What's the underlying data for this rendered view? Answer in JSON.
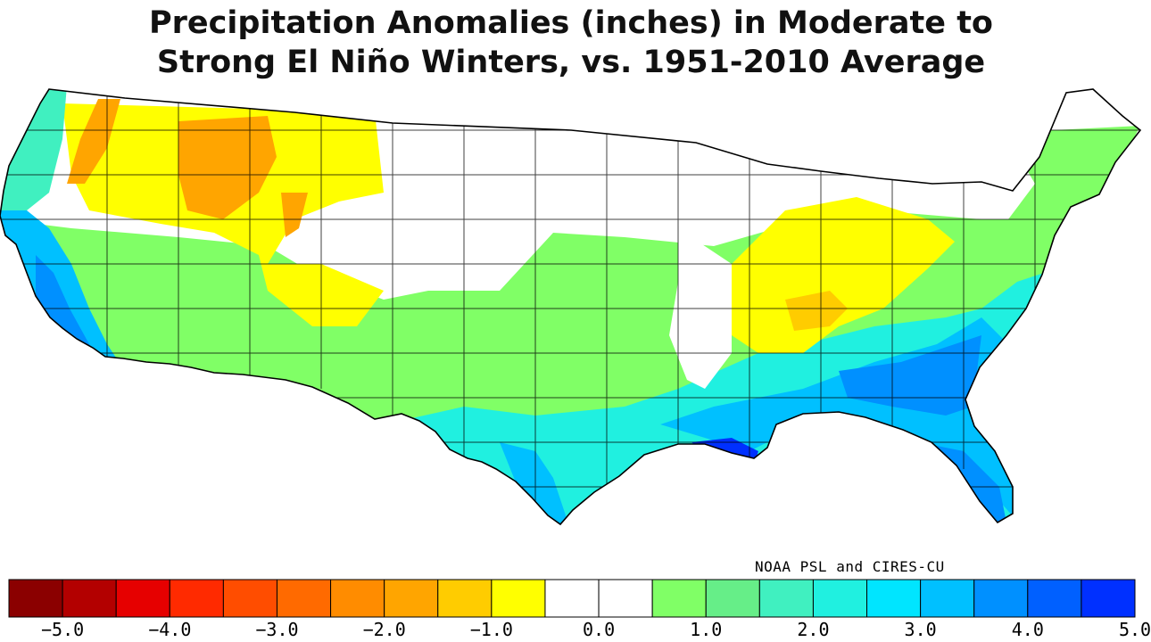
{
  "title": {
    "line1": "Precipitation Anomalies (inches) in Moderate to",
    "line2": "Strong El Niño Winters, vs. 1951-2010 Average"
  },
  "credit": "NOAA PSL and CIRES-CU",
  "legend": {
    "colors": [
      "#8b0000",
      "#b30000",
      "#e60000",
      "#ff2a00",
      "#ff4d00",
      "#ff6a00",
      "#ff8c00",
      "#ffa500",
      "#ffcc00",
      "#ffff00",
      "#ffffff",
      "#ffffff",
      "#80ff66",
      "#66ee88",
      "#40f0c0",
      "#20f0e0",
      "#00e5ff",
      "#00c0ff",
      "#0090ff",
      "#0060ff",
      "#0030ff"
    ],
    "ticks": [
      "-5.0",
      "-4.0",
      "-3.0",
      "-2.0",
      "-1.0",
      "0.0",
      "1.0",
      "2.0",
      "3.0",
      "4.0",
      "5.0"
    ]
  },
  "regions": [
    {
      "name": "Pacific Northwest coast",
      "anomaly_class": "wet",
      "color": "#40f0c0"
    },
    {
      "name": "Interior Northwest / Northern Rockies",
      "anomaly_class": "dry",
      "color": "#ffa500"
    },
    {
      "name": "Northern Plains & Upper Midwest",
      "anomaly_class": "near normal",
      "color": "#ffffff"
    },
    {
      "name": "California",
      "anomaly_class": "wet",
      "color": "#00c0ff"
    },
    {
      "name": "Southwest & Southern Plains",
      "anomaly_class": "wet",
      "color": "#80ff66"
    },
    {
      "name": "Ohio Valley",
      "anomaly_class": "dry",
      "color": "#ffff00"
    },
    {
      "name": "Gulf Coast & Southeast",
      "anomaly_class": "very wet",
      "color": "#0060ff"
    },
    {
      "name": "Northeast coast",
      "anomaly_class": "wet",
      "color": "#80ff66"
    }
  ]
}
